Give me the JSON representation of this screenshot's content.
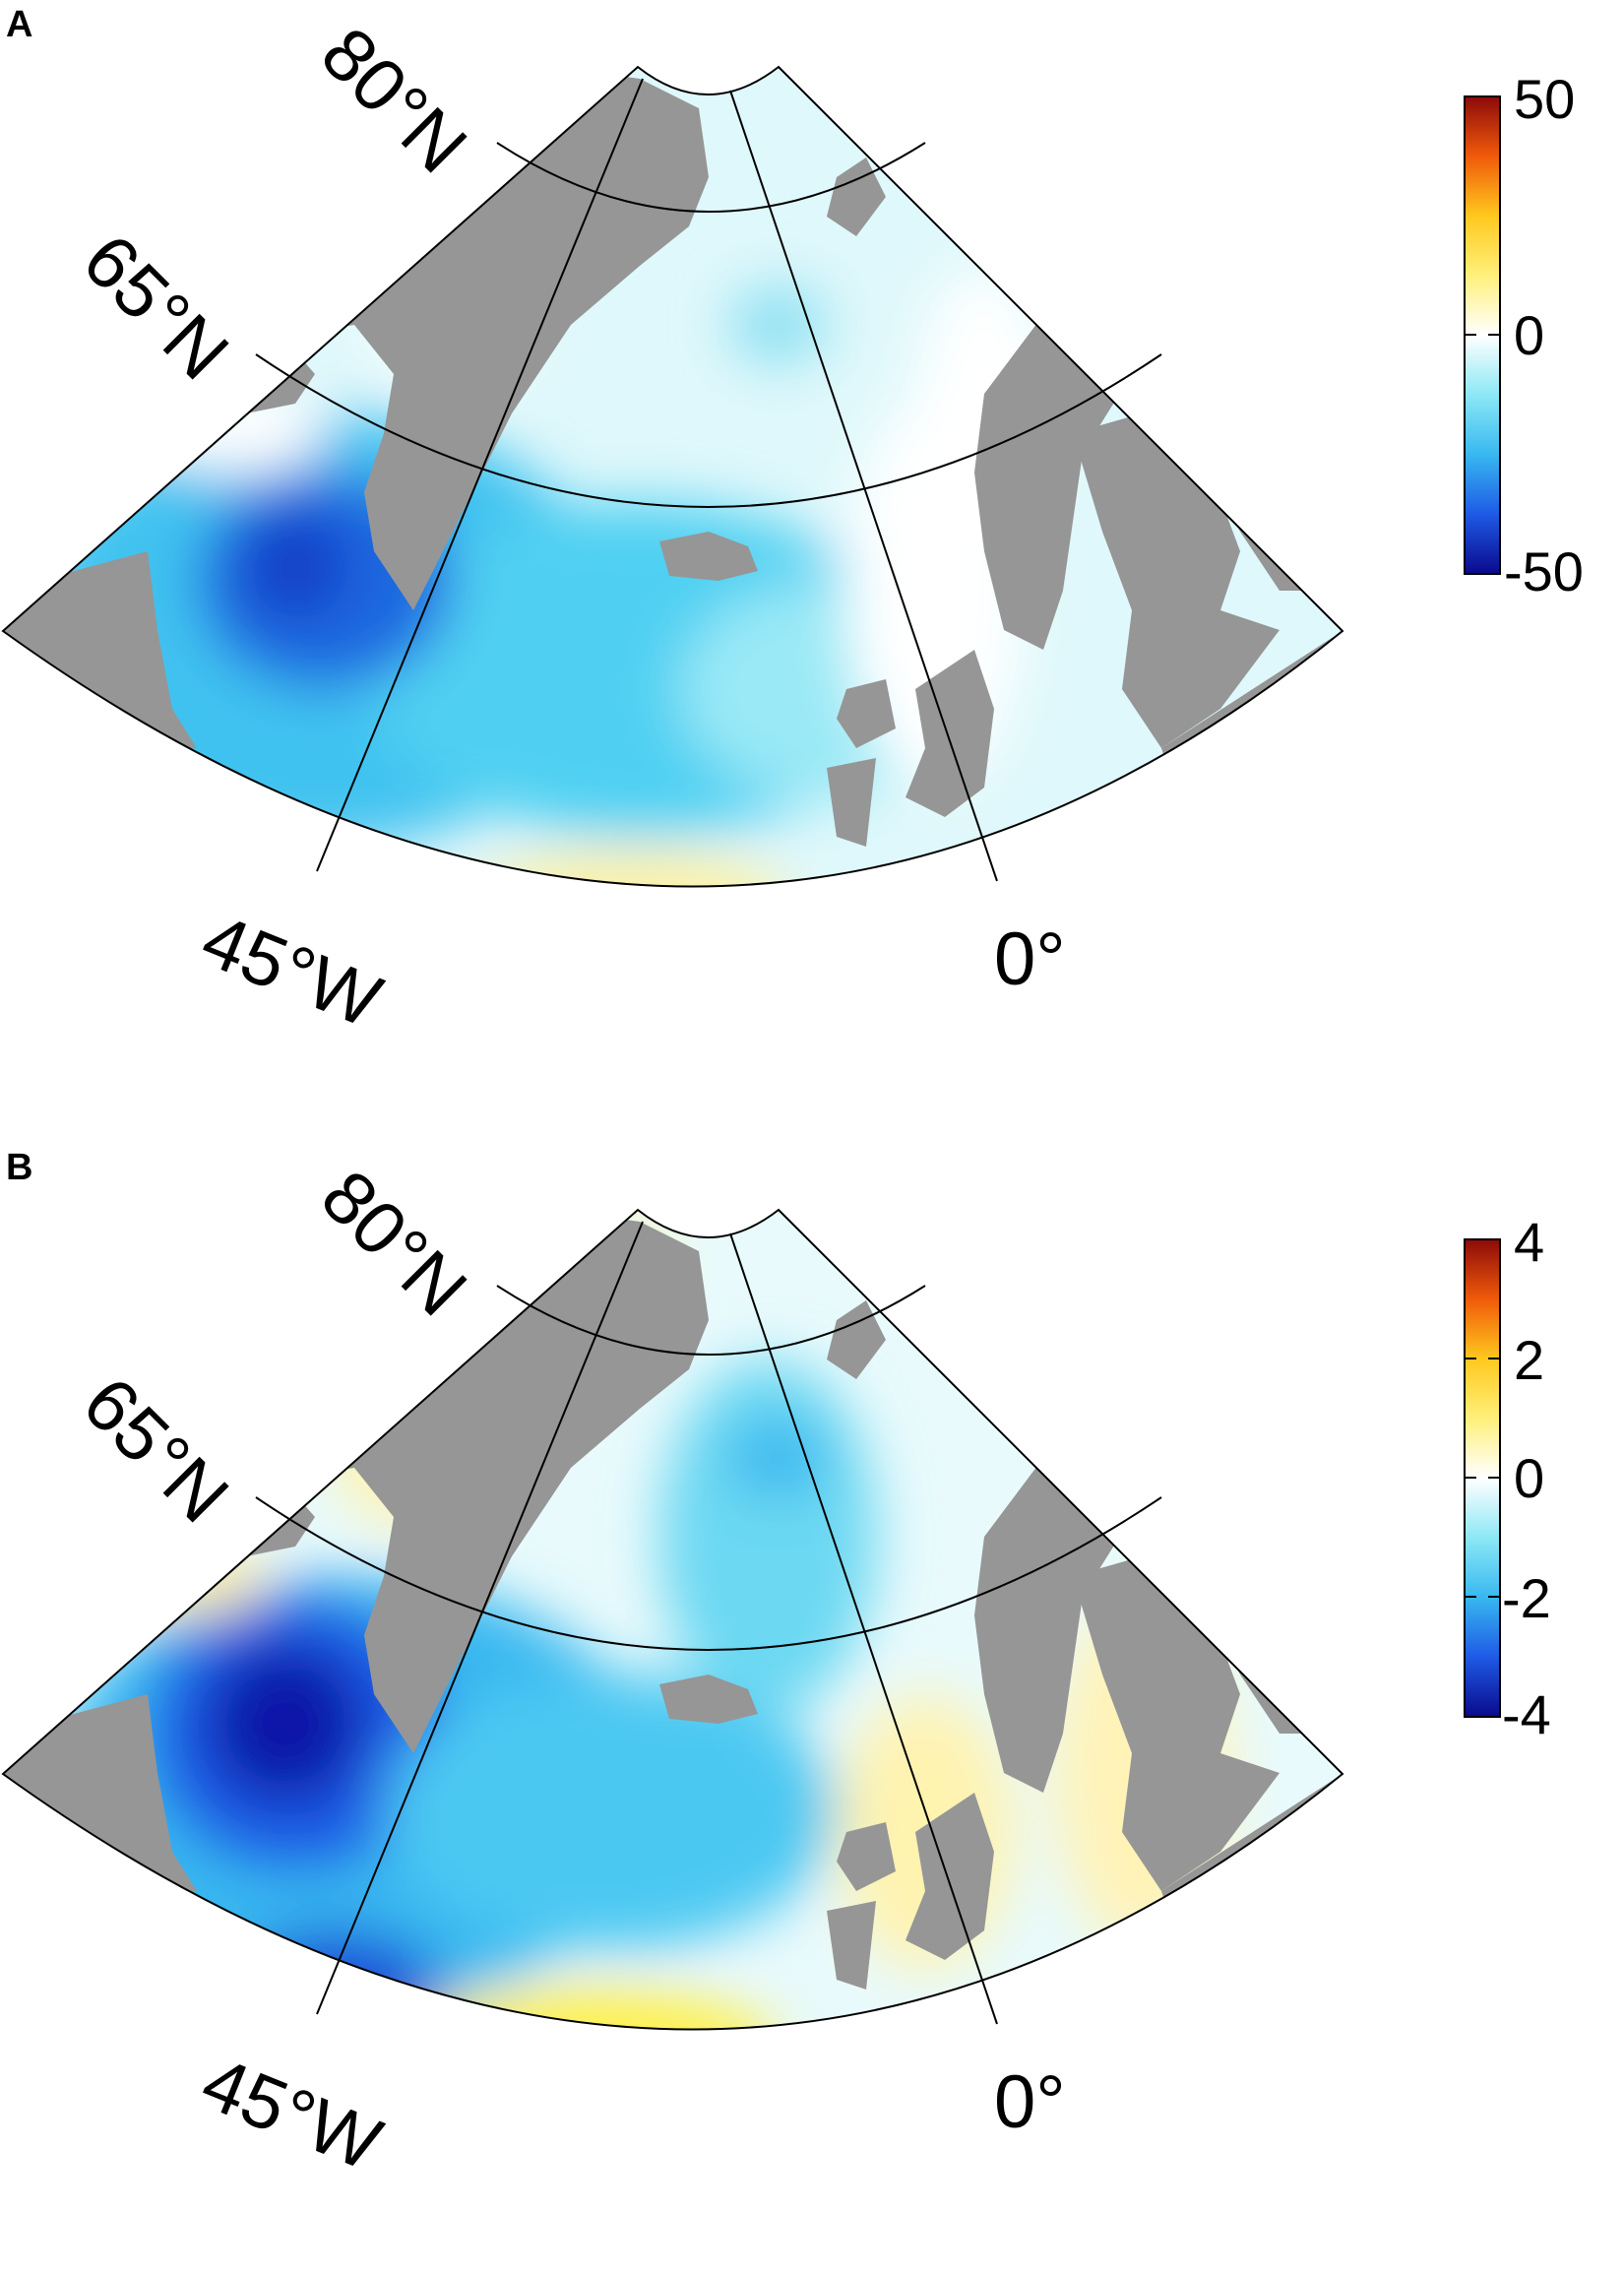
{
  "panels": [
    {
      "letter": "A",
      "lat_labels": [
        "80°N",
        "65°N"
      ],
      "lon_labels": [
        "45°W",
        "0°"
      ],
      "colorbar": {
        "ticks": [
          "50",
          "0",
          "-50"
        ],
        "min": -50,
        "max": 50,
        "colors": [
          "#0a0a8c",
          "#1e5ae6",
          "#38b8f0",
          "#8ce8f5",
          "#ffffff",
          "#fff07a",
          "#ffc81e",
          "#f05a0a",
          "#8c0a0a"
        ]
      }
    },
    {
      "letter": "B",
      "lat_labels": [
        "80°N",
        "65°N"
      ],
      "lon_labels": [
        "45°W",
        "0°"
      ],
      "colorbar": {
        "ticks": [
          "4",
          "2",
          "0",
          "-2",
          "-4"
        ],
        "min": -4,
        "max": 4,
        "colors": [
          "#0a0a8c",
          "#1e5ae6",
          "#38b8f0",
          "#8ce8f5",
          "#ffffff",
          "#fff07a",
          "#ffc81e",
          "#f05a0a",
          "#8c0a0a"
        ]
      }
    }
  ],
  "map_colors": {
    "land": "#969696",
    "ocean_base": "#dff8fb",
    "grid_line": "#000000"
  }
}
